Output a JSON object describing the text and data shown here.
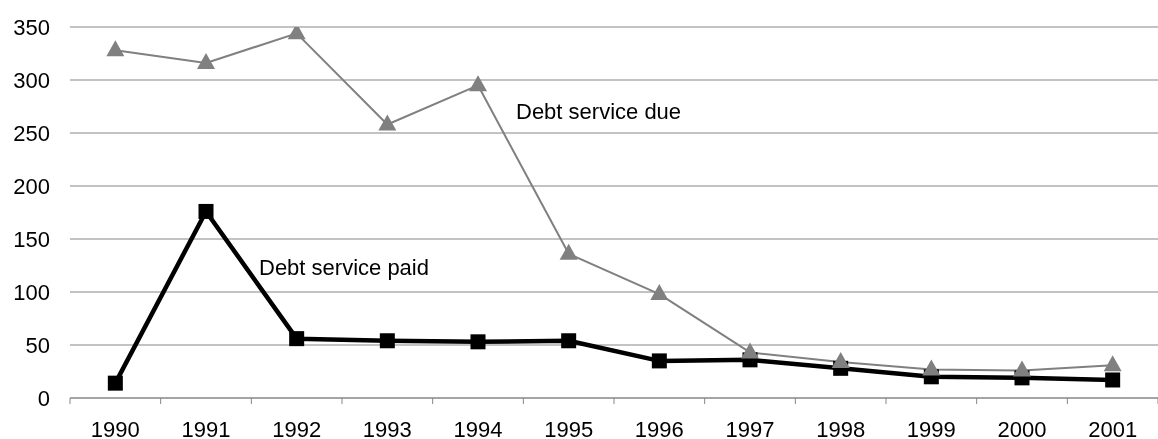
{
  "chart_data": {
    "type": "line",
    "categories": [
      "1990",
      "1991",
      "1992",
      "1993",
      "1994",
      "1995",
      "1996",
      "1997",
      "1998",
      "1999",
      "2000",
      "2001"
    ],
    "series": [
      {
        "name": "Debt service paid",
        "color": "#000000",
        "marker": "square",
        "values": [
          14,
          176,
          56,
          54,
          53,
          54,
          35,
          36,
          28,
          20,
          19,
          17
        ]
      },
      {
        "name": "Debt service due",
        "color": "#808080",
        "marker": "triangle",
        "values": [
          328,
          316,
          344,
          258,
          295,
          136,
          98,
          43,
          34,
          27,
          26,
          31
        ]
      }
    ],
    "ylim": [
      0,
      350
    ],
    "yticks": [
      0,
      50,
      100,
      150,
      200,
      250,
      300,
      350
    ],
    "grid": "y",
    "line_style": "solid"
  }
}
